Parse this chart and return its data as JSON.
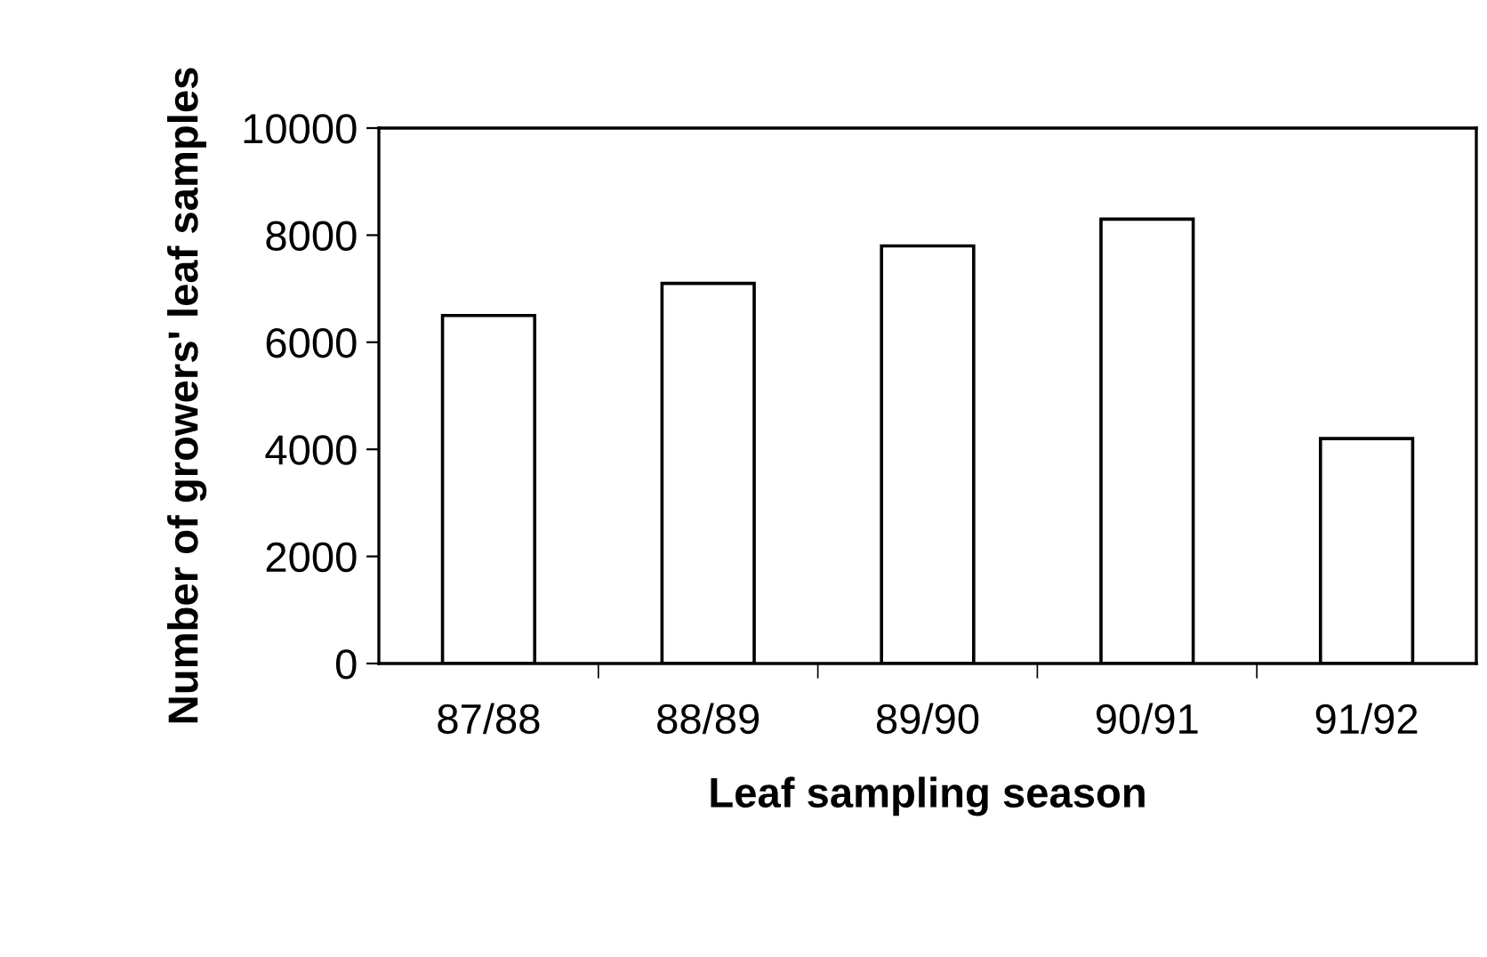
{
  "chart_data": {
    "type": "bar",
    "xlabel": "Leaf sampling season",
    "ylabel": "Number of growers' leaf samples",
    "categories": [
      "87/88",
      "88/89",
      "89/90",
      "90/91",
      "91/92"
    ],
    "values": [
      6500,
      7100,
      7800,
      8300,
      4200
    ],
    "color": "#ffffff",
    "ylim": [
      0,
      10000
    ],
    "yticks": [
      0,
      2000,
      4000,
      6000,
      8000,
      10000
    ],
    "grid": false,
    "legend": false
  }
}
